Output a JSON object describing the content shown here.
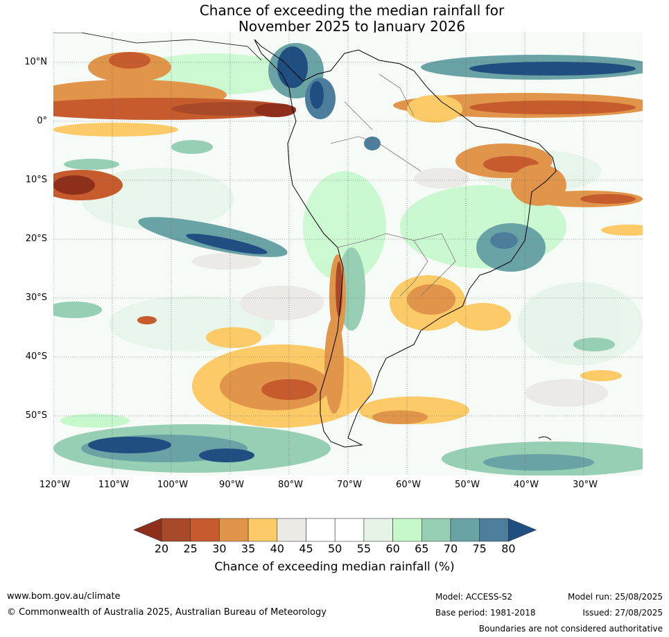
{
  "title": {
    "line1": "Chance of exceeding the median rainfall for",
    "line2": "November 2025 to January 2026"
  },
  "lat_labels": [
    "10°N",
    "0°",
    "10°S",
    "20°S",
    "30°S",
    "40°S",
    "50°S"
  ],
  "lon_labels": [
    "120°W",
    "110°W",
    "100°W",
    "90°W",
    "80°W",
    "70°W",
    "60°W",
    "50°W",
    "40°W",
    "30°W"
  ],
  "colorbar": {
    "ticks": [
      "20",
      "25",
      "30",
      "35",
      "40",
      "45",
      "50",
      "55",
      "60",
      "65",
      "70",
      "75",
      "80"
    ],
    "colors": [
      "#8e2f1b",
      "#a84a2a",
      "#c65c2e",
      "#e0954a",
      "#fdca68",
      "#eceae6",
      "#ffffff",
      "#ffffff",
      "#e6f4e8",
      "#c6f8cc",
      "#96cfb4",
      "#6aa3a6",
      "#4c7e9c",
      "#1f4e80"
    ],
    "label": "Chance of exceeding median rainfall (%)"
  },
  "footer": {
    "website": "www.bom.gov.au/climate",
    "copyright": "© Commonwealth of Australia 2025, Australian Bureau of Meteorology",
    "model": "Model: ACCESS-S2",
    "base_period": "Base period: 1981-2018",
    "model_run": "Model run: 25/08/2025",
    "issued": "Issued: 27/08/2025",
    "disclaimer": "Boundaries are not considered authoritative"
  }
}
